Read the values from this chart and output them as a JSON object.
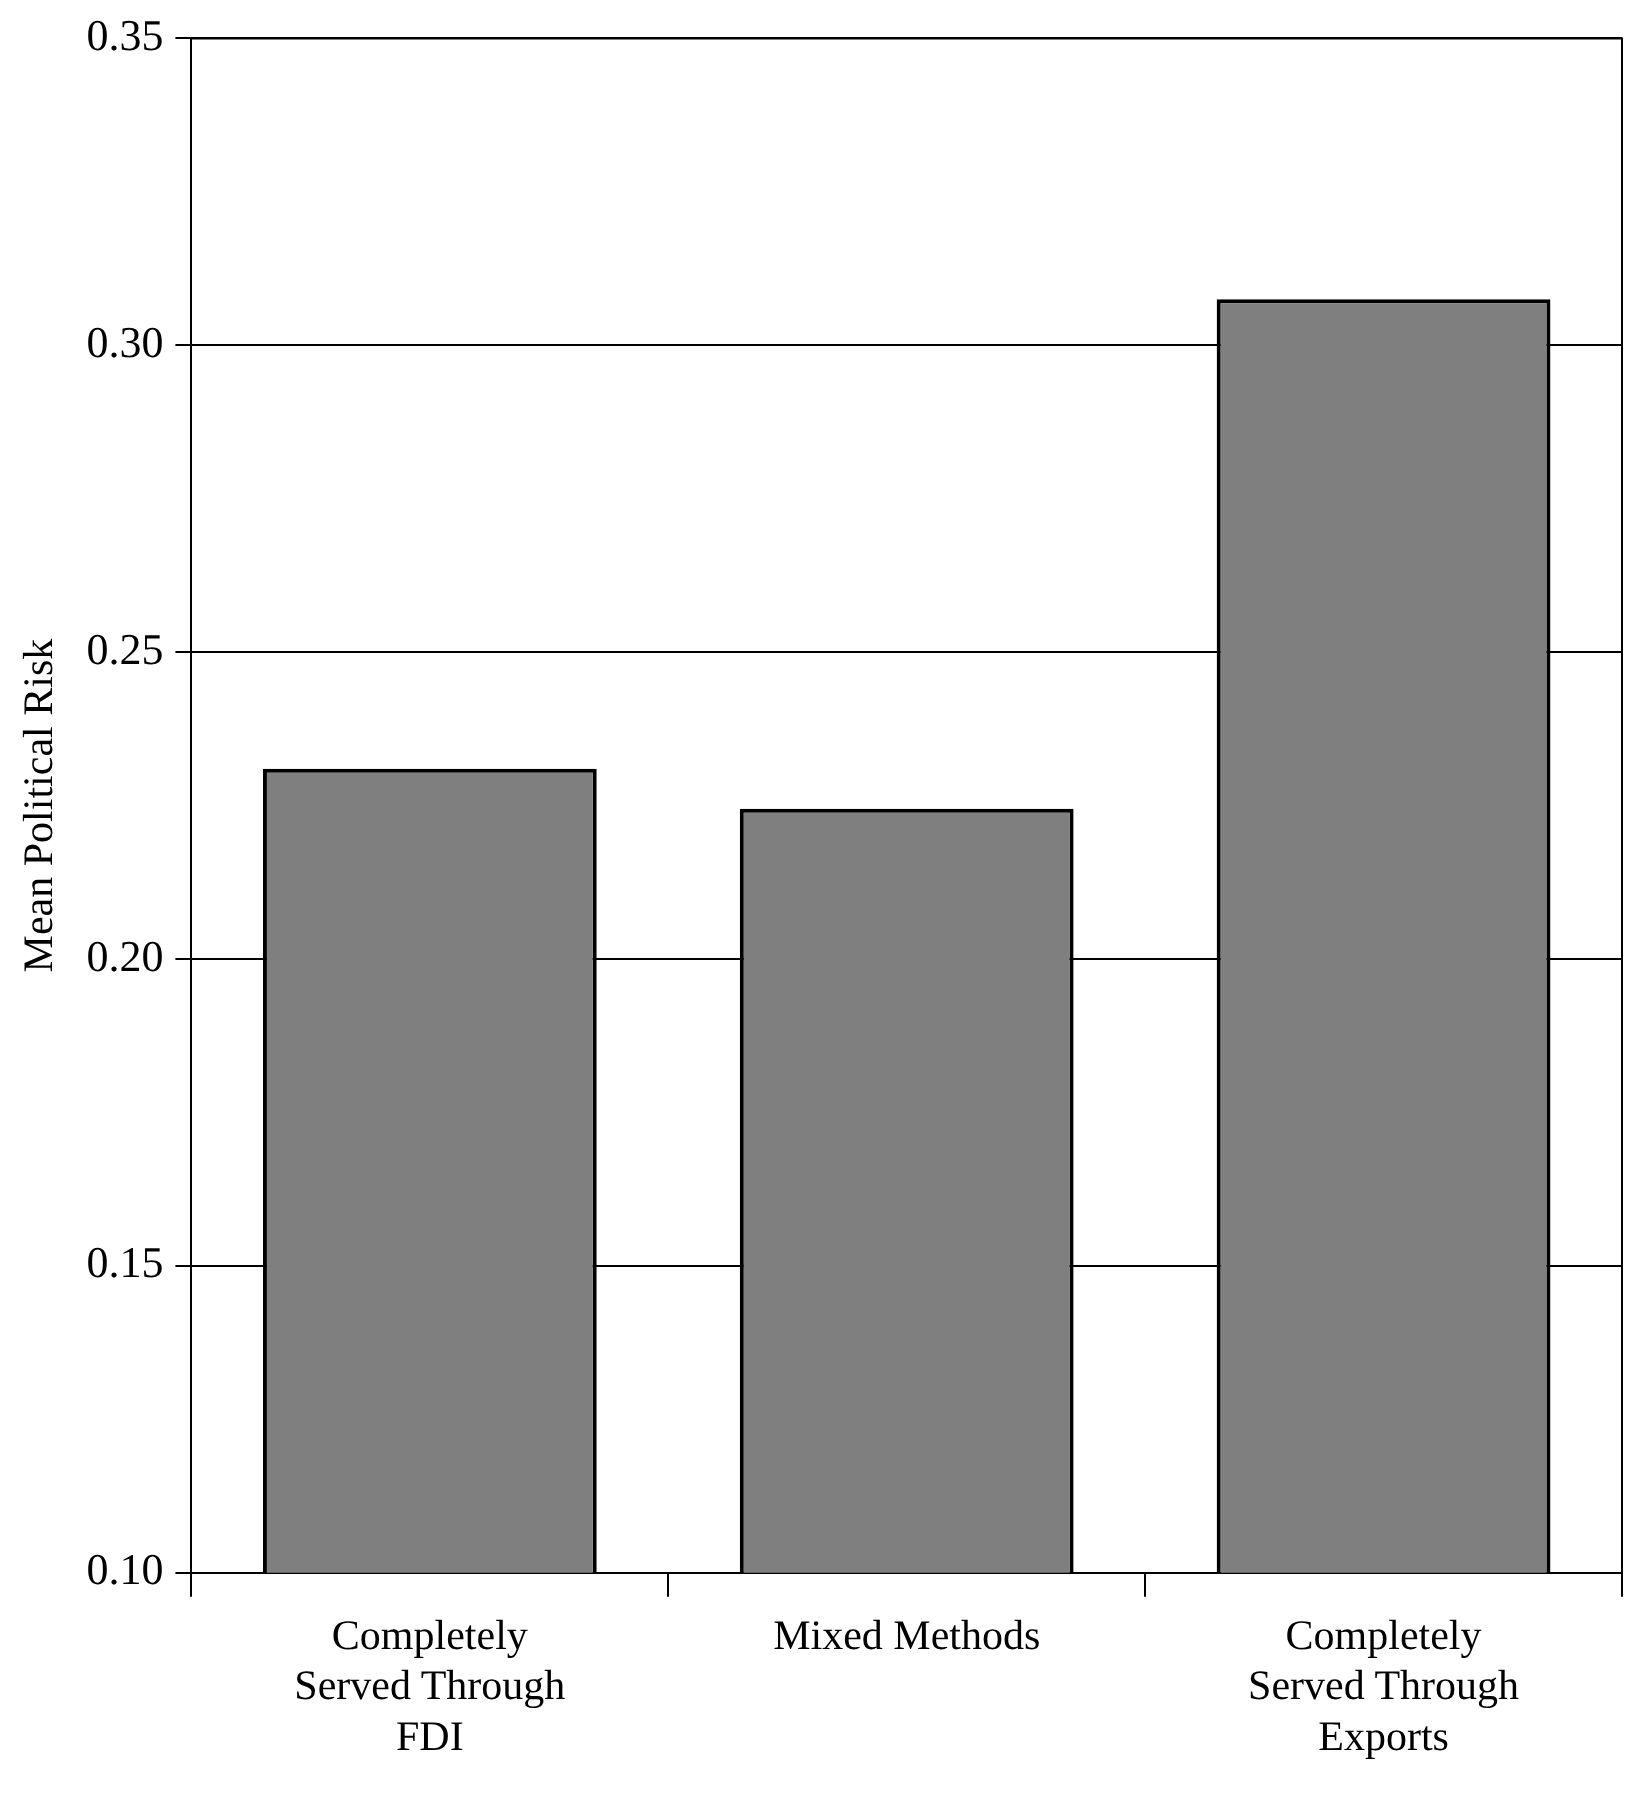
{
  "chart_data": {
    "type": "bar",
    "ylabel": "Mean Political Risk",
    "categories": [
      "Completely Served Through FDI",
      "Mixed Methods",
      "Completely Served Through Exports"
    ],
    "values": [
      0.231,
      0.2245,
      0.3075
    ],
    "color": "#7f7f7f",
    "ylim": [
      0.1,
      0.35
    ],
    "yticks": [
      {
        "value": 0.1,
        "label": "0.10"
      },
      {
        "value": 0.15,
        "label": "0.15"
      },
      {
        "value": 0.2,
        "label": "0.20"
      },
      {
        "value": 0.25,
        "label": "0.25"
      },
      {
        "value": 0.3,
        "label": "0.30"
      },
      {
        "value": 0.35,
        "label": "0.35"
      }
    ],
    "grid": "y"
  }
}
